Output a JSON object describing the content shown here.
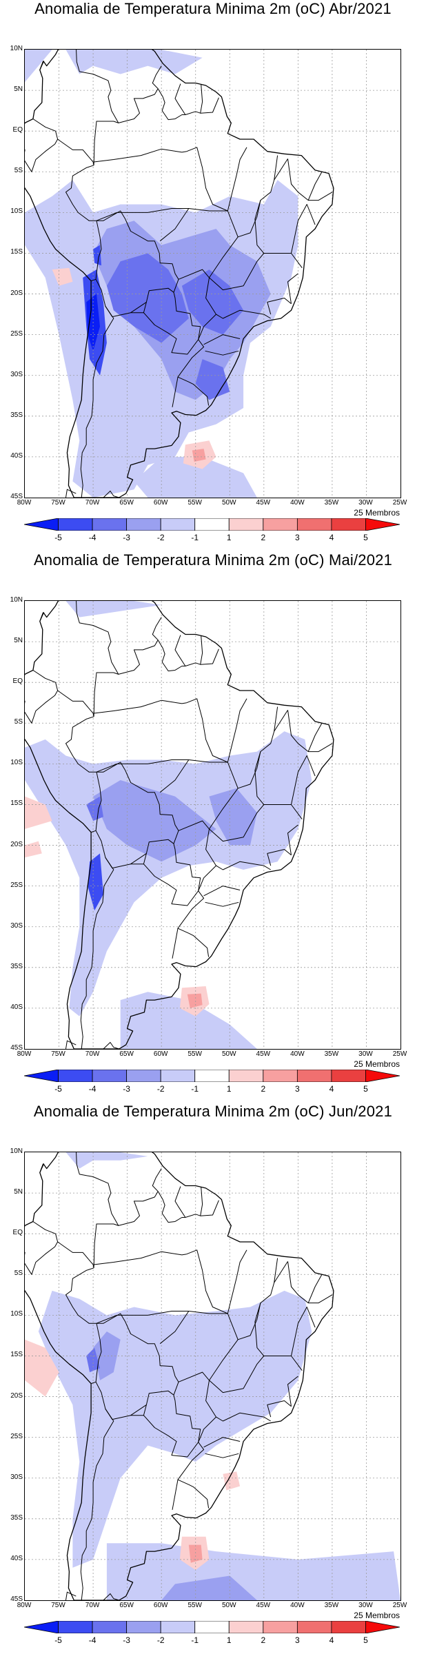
{
  "panels": [
    {
      "title": "Anomalia de Temperatura Minima 2m (oC) Abr/2021",
      "members": "25 Membros"
    },
    {
      "title": "Anomalia de Temperatura Minima 2m (oC) Mai/2021",
      "members": "25 Membros"
    },
    {
      "title": "Anomalia de Temperatura Minima 2m (oC) Jun/2021",
      "members": "25 Membros"
    }
  ],
  "lat_labels": [
    "10N",
    "5N",
    "EQ",
    "5S",
    "10S",
    "15S",
    "20S",
    "25S",
    "30S",
    "35S",
    "40S",
    "45S"
  ],
  "lon_labels": [
    "80W",
    "75W",
    "70W",
    "65W",
    "60W",
    "55W",
    "50W",
    "45W",
    "40W",
    "35W",
    "30W",
    "25W"
  ],
  "colorbar": {
    "labels": [
      "-5",
      "-4",
      "-3",
      "-2",
      "-1",
      "1",
      "2",
      "3",
      "4",
      "5"
    ],
    "colors": [
      "#0a1ef5",
      "#3c4cf2",
      "#6a72ee",
      "#9aa0f0",
      "#c8ccf8",
      "#ffffff",
      "#fbd0d0",
      "#f7a0a0",
      "#f07070",
      "#ea4040",
      "#f50a0a"
    ]
  },
  "colors": {
    "land_outline": "#000000",
    "grid": "#9a9a9a"
  }
}
